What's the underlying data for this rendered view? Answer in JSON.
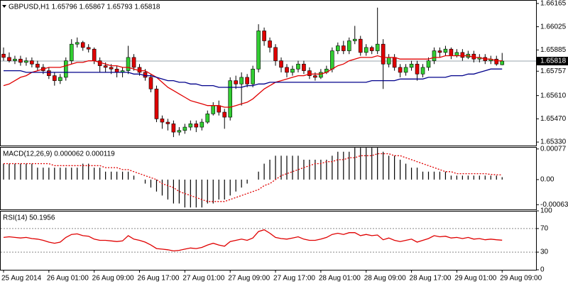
{
  "chart_data": [
    {
      "type": "candlestick",
      "title": "GBPUSD,H1 1.65796 1.65867 1.65793 1.65818",
      "categories": [
        "25 Aug 2014",
        null,
        null,
        null,
        null,
        null,
        null,
        null,
        "26 Aug 01:00",
        null,
        null,
        null,
        null,
        null,
        null,
        null,
        "26 Aug 09:00",
        null,
        null,
        null,
        null,
        null,
        null,
        null,
        "26 Aug 17:00",
        null,
        null,
        null,
        null,
        null,
        null,
        null,
        "27 Aug 01:00",
        null,
        null,
        null,
        null,
        null,
        null,
        null,
        "27 Aug 09:00",
        null,
        null,
        null,
        null,
        null,
        null,
        null,
        "27 Aug 17:00",
        null,
        null,
        null,
        null,
        null,
        null,
        null,
        "28 Aug 01:00",
        null,
        null,
        null,
        null,
        null,
        null,
        null,
        "28 Aug 09:00",
        null,
        null,
        null,
        null,
        null,
        null,
        null,
        "28 Aug 17:00",
        null,
        null,
        null,
        null,
        null,
        null,
        null,
        "29 Aug 01:00",
        null,
        null,
        null,
        null,
        null,
        null,
        null,
        "29 Aug 09:00"
      ],
      "open": [
        1.6586,
        1.6584,
        1.6582,
        1.6583,
        1.6581,
        1.6582,
        1.658,
        1.6578,
        1.6576,
        1.6573,
        1.657,
        1.6572,
        1.6582,
        1.6592,
        1.6593,
        1.659,
        1.6589,
        1.6582,
        1.6579,
        1.6578,
        1.6577,
        1.6575,
        1.6576,
        1.6584,
        1.6578,
        1.6575,
        1.6572,
        1.6565,
        1.6547,
        1.6545,
        1.6544,
        1.6539,
        1.654,
        1.6542,
        1.6544,
        1.6542,
        1.6545,
        1.655,
        1.6555,
        1.6551,
        1.6548,
        1.657,
        1.6568,
        1.6572,
        1.6568,
        1.6577,
        1.66,
        1.6594,
        1.659,
        1.6582,
        1.6578,
        1.6575,
        1.6577,
        1.658,
        1.6576,
        1.6573,
        1.6572,
        1.6575,
        1.6577,
        1.6588,
        1.6591,
        1.6588,
        1.6594,
        1.6595,
        1.6587,
        1.659,
        1.6588,
        1.6592,
        1.658,
        1.6584,
        1.6578,
        1.6575,
        1.6578,
        1.658,
        1.6574,
        1.6578,
        1.6582,
        1.6588,
        1.6587,
        1.6589,
        1.6585,
        1.6587,
        1.6584,
        1.6586,
        1.6583,
        1.6584,
        1.6582,
        1.6583,
        1.65796
      ],
      "high": [
        1.659,
        1.6587,
        1.6585,
        1.6585,
        1.6584,
        1.6584,
        1.6582,
        1.658,
        1.6578,
        1.6575,
        1.6574,
        1.6584,
        1.6595,
        1.6596,
        1.6594,
        1.6592,
        1.659,
        1.6584,
        1.6581,
        1.658,
        1.6579,
        1.6578,
        1.6591,
        1.6586,
        1.658,
        1.6577,
        1.6574,
        1.6567,
        1.6549,
        1.6547,
        1.6546,
        1.6542,
        1.6544,
        1.6546,
        1.6546,
        1.6547,
        1.6552,
        1.6557,
        1.6558,
        1.6553,
        1.6572,
        1.6573,
        1.6575,
        1.6574,
        1.6579,
        1.6604,
        1.6602,
        1.6596,
        1.6592,
        1.6584,
        1.658,
        1.6579,
        1.6582,
        1.6582,
        1.6578,
        1.6575,
        1.6577,
        1.6579,
        1.659,
        1.6593,
        1.6594,
        1.6596,
        1.6603,
        1.6597,
        1.6592,
        1.6591,
        1.6614,
        1.6595,
        1.6586,
        1.6586,
        1.658,
        1.658,
        1.6582,
        1.6582,
        1.658,
        1.6584,
        1.659,
        1.659,
        1.6591,
        1.659,
        1.6589,
        1.6589,
        1.6588,
        1.6588,
        1.6586,
        1.6586,
        1.6585,
        1.6585,
        1.65867
      ],
      "low": [
        1.6582,
        1.6581,
        1.658,
        1.6579,
        1.6579,
        1.6578,
        1.6576,
        1.6574,
        1.6571,
        1.6567,
        1.6568,
        1.657,
        1.658,
        1.659,
        1.6588,
        1.6587,
        1.658,
        1.6575,
        1.6575,
        1.6574,
        1.6572,
        1.6572,
        1.6574,
        1.6576,
        1.6573,
        1.657,
        1.6563,
        1.6545,
        1.6541,
        1.654,
        1.6536,
        1.6537,
        1.6538,
        1.654,
        1.6539,
        1.654,
        1.6544,
        1.6549,
        1.6549,
        1.6541,
        1.6546,
        1.6565,
        1.6555,
        1.6566,
        1.6566,
        1.6575,
        1.6591,
        1.6587,
        1.6579,
        1.6575,
        1.6572,
        1.6573,
        1.6575,
        1.6574,
        1.6571,
        1.657,
        1.6571,
        1.6574,
        1.6575,
        1.6586,
        1.6586,
        1.6586,
        1.6592,
        1.6585,
        1.6585,
        1.6586,
        1.6586,
        1.6565,
        1.6578,
        1.6576,
        1.6572,
        1.6573,
        1.6576,
        1.657,
        1.6572,
        1.6576,
        1.658,
        1.6584,
        1.6585,
        1.6583,
        1.6584,
        1.6582,
        1.6583,
        1.6581,
        1.6581,
        1.658,
        1.658,
        1.6579,
        1.65793
      ],
      "close": [
        1.6584,
        1.6582,
        1.6583,
        1.6581,
        1.6582,
        1.658,
        1.6578,
        1.6576,
        1.6573,
        1.657,
        1.6572,
        1.6582,
        1.6592,
        1.6593,
        1.659,
        1.6589,
        1.6582,
        1.6579,
        1.6578,
        1.6577,
        1.6575,
        1.6576,
        1.6584,
        1.6578,
        1.6575,
        1.6572,
        1.6565,
        1.6547,
        1.6545,
        1.6544,
        1.6539,
        1.654,
        1.6542,
        1.6544,
        1.6542,
        1.6545,
        1.655,
        1.6555,
        1.6551,
        1.6548,
        1.657,
        1.6568,
        1.6572,
        1.6568,
        1.6577,
        1.66,
        1.6594,
        1.659,
        1.6582,
        1.6578,
        1.6575,
        1.6577,
        1.658,
        1.6576,
        1.6573,
        1.6572,
        1.6575,
        1.6577,
        1.6588,
        1.6591,
        1.6588,
        1.6594,
        1.6595,
        1.6587,
        1.659,
        1.6588,
        1.6592,
        1.658,
        1.6584,
        1.6578,
        1.6575,
        1.6578,
        1.658,
        1.6574,
        1.6578,
        1.6582,
        1.6588,
        1.6587,
        1.6589,
        1.6585,
        1.6587,
        1.6584,
        1.6586,
        1.6583,
        1.6584,
        1.6582,
        1.6583,
        1.658,
        1.65818
      ],
      "up_color": "#32cd32",
      "down_color": "#e00000",
      "series": [
        {
          "color": "#e00000",
          "values": [
            1.6567,
            1.6568,
            1.657,
            1.6572,
            1.6573,
            1.6575,
            1.6576,
            1.6577,
            1.6578,
            1.6578,
            1.6578,
            1.6579,
            1.658,
            1.6581,
            1.6581,
            1.6582,
            1.6582,
            1.6581,
            1.658,
            1.6579,
            1.6579,
            1.6578,
            1.6578,
            1.6577,
            1.6576,
            1.6576,
            1.6574,
            1.6572,
            1.6569,
            1.6566,
            1.6564,
            1.6562,
            1.656,
            1.6558,
            1.6557,
            1.6556,
            1.6555,
            1.6555,
            1.6555,
            1.6554,
            1.6554,
            1.6555,
            1.6556,
            1.6557,
            1.6559,
            1.6562,
            1.6565,
            1.6567,
            1.6569,
            1.657,
            1.6571,
            1.6572,
            1.6573,
            1.6573,
            1.6574,
            1.6574,
            1.6574,
            1.6575,
            1.6577,
            1.6579,
            1.658,
            1.6582,
            1.6583,
            1.6584,
            1.6584,
            1.6584,
            1.6585,
            1.6584,
            1.6584,
            1.6584,
            1.6583,
            1.6583,
            1.6583,
            1.6583,
            1.6583,
            1.6583,
            1.6584,
            1.6584,
            1.6585,
            1.6585,
            1.6585,
            1.6585,
            1.6585,
            1.6584,
            1.6584,
            1.6583,
            1.6583,
            1.6582,
            1.6582
          ]
        },
        {
          "color": "#00008b",
          "values": [
            1.6576,
            1.6576,
            1.6576,
            1.6576,
            1.6575,
            1.6575,
            1.6575,
            1.6575,
            1.6575,
            1.6575,
            1.6575,
            1.6575,
            1.6575,
            1.6575,
            1.6575,
            1.6575,
            1.6575,
            1.6575,
            1.6575,
            1.6575,
            1.6575,
            1.6575,
            1.6575,
            1.6574,
            1.6574,
            1.6573,
            1.6573,
            1.6572,
            1.6571,
            1.657,
            1.657,
            1.6569,
            1.6569,
            1.6568,
            1.6568,
            1.6567,
            1.6567,
            1.6567,
            1.6566,
            1.6566,
            1.6566,
            1.6566,
            1.6566,
            1.6567,
            1.6567,
            1.6568,
            1.6568,
            1.6569,
            1.6569,
            1.6569,
            1.6569,
            1.6569,
            1.6569,
            1.6569,
            1.6569,
            1.6569,
            1.6569,
            1.6569,
            1.6569,
            1.6569,
            1.6569,
            1.6569,
            1.6569,
            1.6569,
            1.6569,
            1.657,
            1.657,
            1.657,
            1.657,
            1.657,
            1.6571,
            1.6571,
            1.6571,
            1.6571,
            1.6571,
            1.6572,
            1.6572,
            1.6572,
            1.6572,
            1.6573,
            1.6573,
            1.6573,
            1.6574,
            1.6574,
            1.6575,
            1.6576,
            1.6577,
            1.6577,
            1.6577
          ]
        }
      ],
      "current_price": 1.65818,
      "ylim": [
        1.65309,
        1.66186
      ],
      "yticks": [
        1.66165,
        1.66025,
        1.65885,
        1.65757,
        {
          "value": 1.6561,
          "label": "1.65610"
        },
        {
          "value": 1.6547,
          "label": "1.65470"
        },
        {
          "value": 1.6533,
          "label": "1.65330"
        }
      ]
    },
    {
      "type": "bar",
      "title": "MACD(12,26,9) 0.000062 0.000119",
      "series": [
        {
          "kind": "bar",
          "color": "#000000",
          "values": [
            0.0004,
            0.0004,
            0.0004,
            0.0004,
            0.0004,
            0.0004,
            0.0003,
            0.0003,
            0.0003,
            0.0003,
            0.0003,
            0.0003,
            0.0003,
            0.0003,
            0.0004,
            0.0004,
            0.0003,
            0.0003,
            0.0002,
            0.0002,
            0.0002,
            0.0002,
            0.0002,
            0.0001,
            0,
            -0.0001,
            -0.0002,
            -0.0003,
            -0.0004,
            -0.0005,
            -0.0006,
            -0.0006,
            -0.0007,
            -0.0007,
            -0.0007,
            -0.0007,
            -0.0006,
            -0.0006,
            -0.0005,
            -0.0005,
            -0.0004,
            -0.0003,
            -0.0002,
            -0.0001,
            0,
            0.0002,
            0.0004,
            0.0005,
            0.0006,
            0.0006,
            0.0006,
            0.0006,
            0.0006,
            0.0005,
            0.0005,
            0.0005,
            0.0005,
            0.0005,
            0.0006,
            0.0007,
            0.0007,
            0.0007,
            0.0008,
            0.0008,
            0.0008,
            0.0008,
            0.0008,
            0.0007,
            0.0006,
            0.0006,
            0.0005,
            0.0004,
            0.0003,
            0.0003,
            0.0002,
            0.0002,
            0.0002,
            0.0002,
            0.0002,
            0.0001,
            0.0001,
            0.0001,
            0.0001,
            0.0001,
            0.0001,
            0.0001,
            0.0001,
            0.0001,
            6.2e-05
          ]
        },
        {
          "kind": "line",
          "color": "#e00000",
          "dashed": true,
          "values": [
            0.0004,
            0.0004,
            0.0004,
            0.0004,
            0.0004,
            0.0004,
            0.0004,
            0.0004,
            0.0004,
            0.00035,
            0.00035,
            0.00035,
            0.00035,
            0.00035,
            0.00035,
            0.00035,
            0.00035,
            0.00035,
            0.0003,
            0.0003,
            0.0003,
            0.00025,
            0.00025,
            0.0002,
            0.00015,
            0.0001,
            5e-05,
            0,
            -0.0001,
            -0.00015,
            -0.0002,
            -0.0003,
            -0.00035,
            -0.0004,
            -0.00045,
            -0.0005,
            -0.00055,
            -0.00055,
            -0.00055,
            -0.00055,
            -0.0005,
            -0.00045,
            -0.0004,
            -0.00035,
            -0.0003,
            -0.00025,
            -0.00015,
            -0.0001,
            0,
            0.0001,
            0.00015,
            0.0002,
            0.00025,
            0.0003,
            0.00035,
            0.0004,
            0.0004,
            0.00045,
            0.00045,
            0.0005,
            0.0005,
            0.00055,
            0.00055,
            0.0006,
            0.0006,
            0.0006,
            0.00065,
            0.00065,
            0.00065,
            0.0006,
            0.0006,
            0.00055,
            0.0005,
            0.00045,
            0.0004,
            0.00035,
            0.0003,
            0.00025,
            0.0002,
            0.0002,
            0.00015,
            0.00015,
            0.00015,
            0.00015,
            0.00015,
            0.00015,
            0.00013,
            0.00012,
            0.000119
          ]
        }
      ],
      "ylim": [
        -0.00075,
        0.00082
      ],
      "yticks": [
        0.00077,
        {
          "value": 0,
          "label": "0.00"
        },
        -0.00063
      ]
    },
    {
      "type": "line",
      "title": "RSI(14) 50.1956",
      "series": [
        {
          "color": "#e00000",
          "values": [
            55,
            56,
            55,
            54,
            55,
            53,
            52,
            50,
            47,
            45,
            47,
            55,
            60,
            61,
            58,
            57,
            52,
            50,
            50,
            49,
            48,
            49,
            58,
            52,
            50,
            47,
            42,
            36,
            35,
            34,
            32,
            33,
            35,
            37,
            36,
            38,
            42,
            45,
            42,
            40,
            48,
            50,
            52,
            50,
            54,
            65,
            68,
            62,
            55,
            53,
            52,
            54,
            56,
            52,
            50,
            50,
            52,
            55,
            60,
            62,
            60,
            63,
            63,
            58,
            60,
            58,
            59,
            51,
            54,
            50,
            48,
            50,
            52,
            47,
            50,
            53,
            58,
            56,
            57,
            54,
            55,
            53,
            55,
            52,
            53,
            51,
            52,
            51,
            50.1956
          ]
        }
      ],
      "levels": [
        70,
        30
      ],
      "ylim": [
        0,
        100
      ],
      "yticks": [
        100,
        70,
        30,
        0
      ]
    }
  ]
}
